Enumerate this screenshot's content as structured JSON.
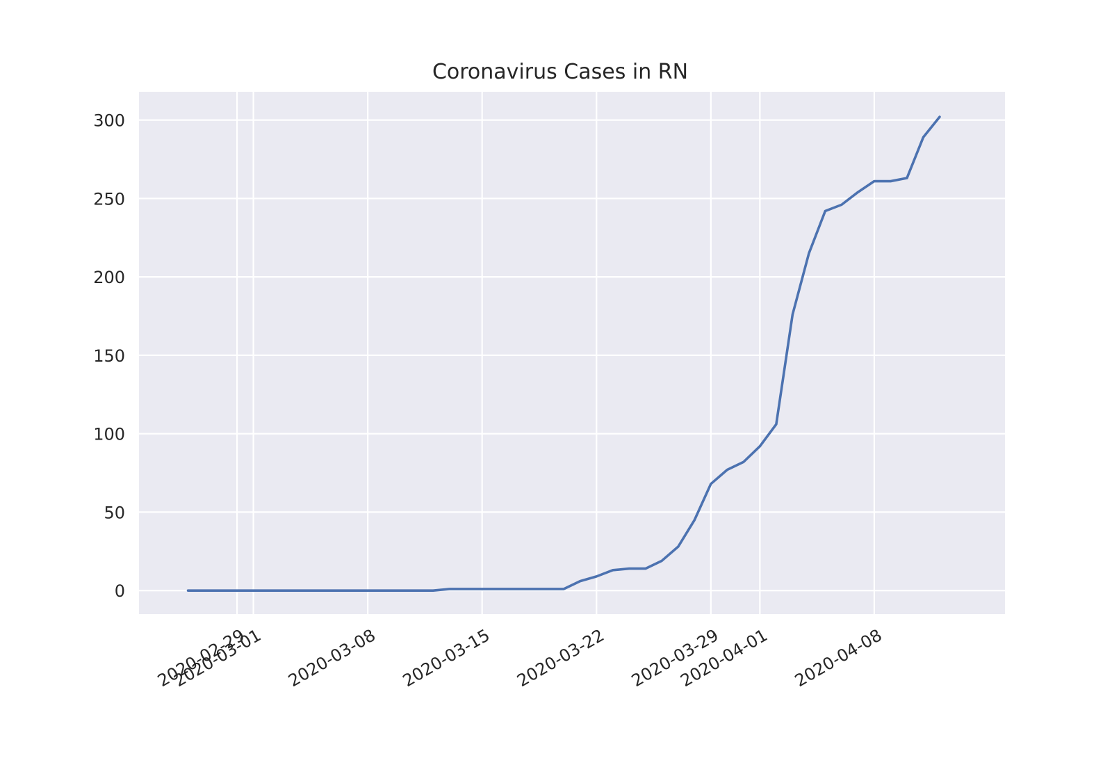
{
  "chart_data": {
    "type": "line",
    "title": "Coronavirus Cases in RN",
    "xlabel": "",
    "ylabel": "",
    "x_scale": "date",
    "xlim": [
      "2020-02-23",
      "2020-04-16"
    ],
    "ylim": [
      -15,
      318
    ],
    "x_ticks": [
      "2020-02-29",
      "2020-03-01",
      "2020-03-08",
      "2020-03-15",
      "2020-03-22",
      "2020-03-29",
      "2020-04-01",
      "2020-04-08"
    ],
    "x_tick_labels": [
      "2020-02-29",
      "2020-03-01",
      "2020-03-08",
      "2020-03-15",
      "2020-03-22",
      "2020-03-29",
      "2020-04-01",
      "2020-04-08"
    ],
    "y_ticks": [
      0,
      50,
      100,
      150,
      200,
      250,
      300
    ],
    "y_tick_labels": [
      "0",
      "50",
      "100",
      "150",
      "200",
      "250",
      "300"
    ],
    "grid": true,
    "background_color": "#eaeaf2",
    "grid_color": "#ffffff",
    "legend": null,
    "series": [
      {
        "color": "#4c72b0",
        "x": [
          "2020-02-26",
          "2020-02-27",
          "2020-02-28",
          "2020-02-29",
          "2020-03-01",
          "2020-03-02",
          "2020-03-03",
          "2020-03-04",
          "2020-03-05",
          "2020-03-06",
          "2020-03-07",
          "2020-03-08",
          "2020-03-09",
          "2020-03-10",
          "2020-03-11",
          "2020-03-12",
          "2020-03-13",
          "2020-03-14",
          "2020-03-15",
          "2020-03-16",
          "2020-03-17",
          "2020-03-18",
          "2020-03-19",
          "2020-03-20",
          "2020-03-21",
          "2020-03-22",
          "2020-03-23",
          "2020-03-24",
          "2020-03-25",
          "2020-03-26",
          "2020-03-27",
          "2020-03-28",
          "2020-03-29",
          "2020-03-30",
          "2020-03-31",
          "2020-04-01",
          "2020-04-02",
          "2020-04-03",
          "2020-04-04",
          "2020-04-05",
          "2020-04-06",
          "2020-04-07",
          "2020-04-08",
          "2020-04-09",
          "2020-04-10",
          "2020-04-11",
          "2020-04-12"
        ],
        "values": [
          0,
          0,
          0,
          0,
          0,
          0,
          0,
          0,
          0,
          0,
          0,
          0,
          0,
          0,
          0,
          0,
          1,
          1,
          1,
          1,
          1,
          1,
          1,
          1,
          6,
          9,
          13,
          14,
          14,
          19,
          28,
          45,
          68,
          77,
          82,
          92,
          106,
          176,
          215,
          242,
          246,
          254,
          261,
          261,
          263,
          289,
          302
        ]
      }
    ]
  }
}
